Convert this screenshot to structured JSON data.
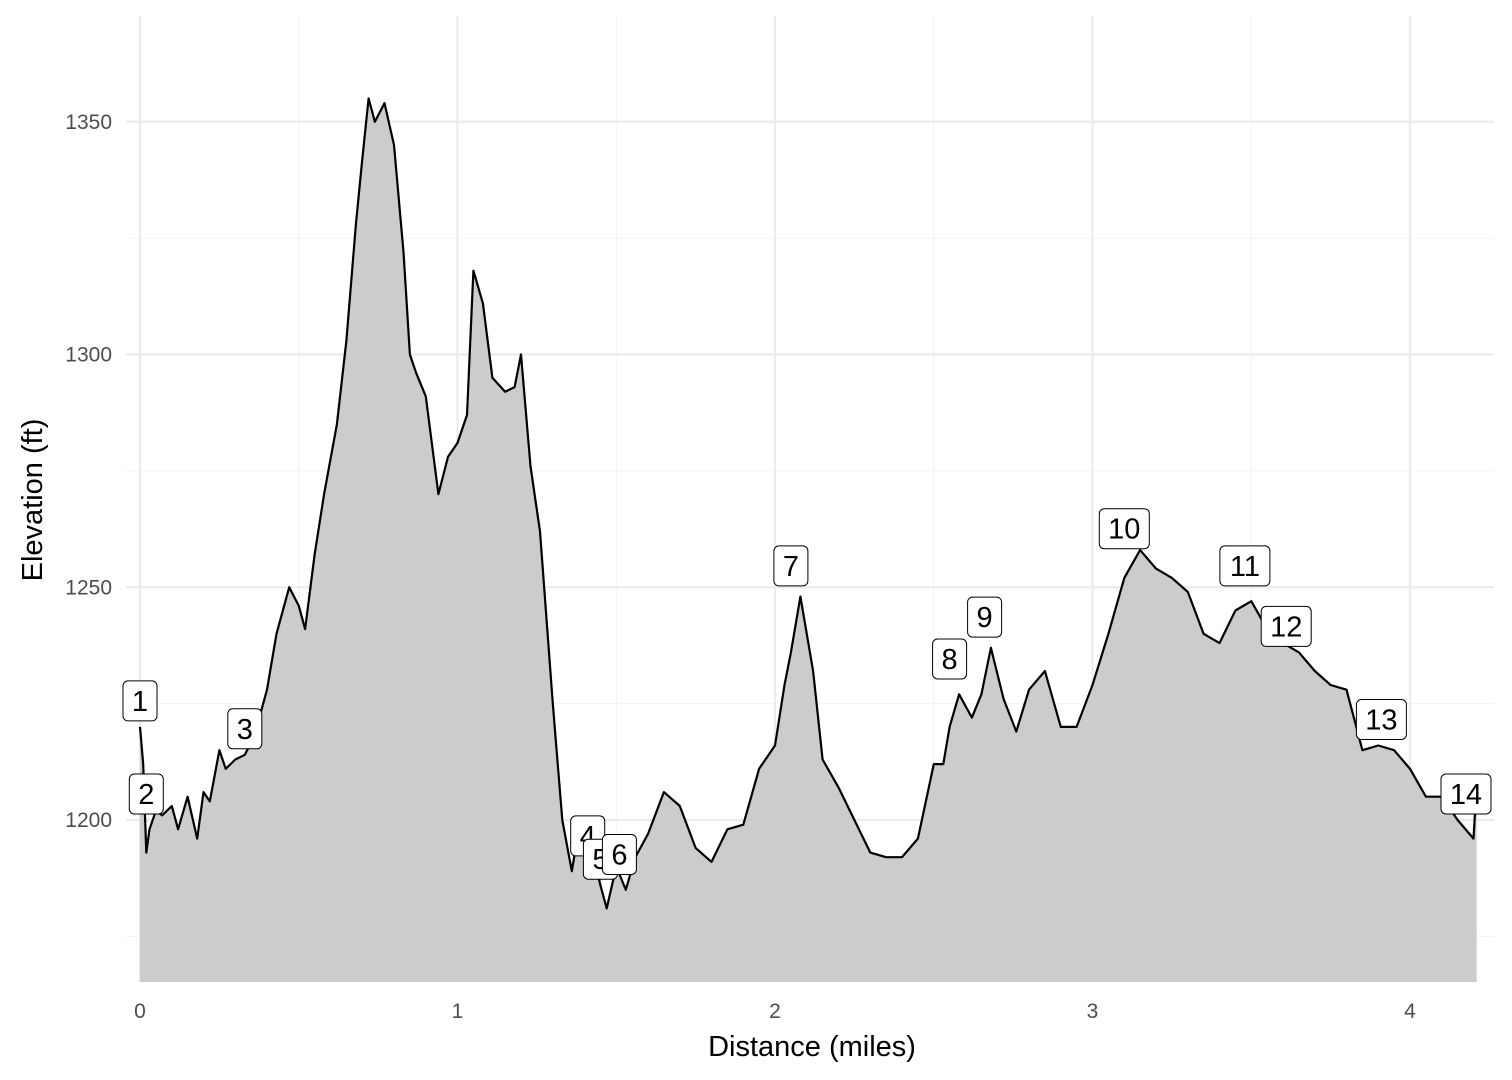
{
  "chart_data": {
    "type": "area",
    "title": "",
    "xlabel": "Distance (miles)",
    "ylabel": "Elevation (ft)",
    "xlim": [
      0,
      4.25
    ],
    "ylim": [
      1165,
      1373
    ],
    "grid": true,
    "x_ticks": [
      0,
      1,
      2,
      3,
      4
    ],
    "x_tick_labels": [
      "0",
      "1",
      "2",
      "3",
      "4"
    ],
    "y_ticks": [
      1200,
      1250,
      1300,
      1350
    ],
    "y_tick_labels": [
      "1200",
      "1250",
      "1300",
      "1350"
    ],
    "fill_color": "#cccccc",
    "line_color": "#000000",
    "profile": {
      "x": [
        0.0,
        0.01,
        0.02,
        0.03,
        0.05,
        0.07,
        0.1,
        0.12,
        0.15,
        0.18,
        0.2,
        0.22,
        0.25,
        0.27,
        0.3,
        0.33,
        0.36,
        0.4,
        0.43,
        0.47,
        0.5,
        0.52,
        0.55,
        0.58,
        0.62,
        0.65,
        0.68,
        0.7,
        0.72,
        0.74,
        0.77,
        0.8,
        0.83,
        0.85,
        0.87,
        0.9,
        0.94,
        0.97,
        1.0,
        1.03,
        1.05,
        1.08,
        1.11,
        1.15,
        1.18,
        1.2,
        1.23,
        1.26,
        1.3,
        1.33,
        1.36,
        1.38,
        1.4,
        1.43,
        1.45,
        1.47,
        1.5,
        1.53,
        1.56,
        1.6,
        1.65,
        1.7,
        1.75,
        1.8,
        1.85,
        1.9,
        1.95,
        2.0,
        2.03,
        2.05,
        2.08,
        2.12,
        2.15,
        2.2,
        2.25,
        2.3,
        2.35,
        2.4,
        2.45,
        2.5,
        2.53,
        2.55,
        2.58,
        2.62,
        2.65,
        2.68,
        2.72,
        2.76,
        2.8,
        2.85,
        2.9,
        2.95,
        3.0,
        3.05,
        3.1,
        3.15,
        3.2,
        3.25,
        3.3,
        3.35,
        3.4,
        3.45,
        3.5,
        3.55,
        3.6,
        3.65,
        3.7,
        3.75,
        3.8,
        3.85,
        3.9,
        3.95,
        4.0,
        4.05,
        4.1,
        4.15,
        4.2,
        4.21
      ],
      "y": [
        1220,
        1212,
        1193,
        1198,
        1202,
        1201,
        1203,
        1198,
        1205,
        1196,
        1206,
        1204,
        1215,
        1211,
        1213,
        1214,
        1218,
        1228,
        1240,
        1250,
        1246,
        1241,
        1257,
        1270,
        1285,
        1303,
        1328,
        1342,
        1355,
        1350,
        1354,
        1345,
        1322,
        1300,
        1296,
        1291,
        1270,
        1278,
        1281,
        1287,
        1318,
        1311,
        1295,
        1292,
        1293,
        1300,
        1276,
        1262,
        1225,
        1200,
        1189,
        1197,
        1196,
        1192,
        1186,
        1181,
        1190,
        1185,
        1192,
        1197,
        1206,
        1203,
        1194,
        1191,
        1198,
        1199,
        1211,
        1216,
        1229,
        1236,
        1248,
        1232,
        1213,
        1207,
        1200,
        1193,
        1192,
        1192,
        1196,
        1212,
        1212,
        1220,
        1227,
        1222,
        1227,
        1237,
        1226,
        1219,
        1228,
        1232,
        1220,
        1220,
        1229,
        1240,
        1252,
        1258,
        1254,
        1252,
        1249,
        1240,
        1238,
        1245,
        1247,
        1241,
        1238,
        1236,
        1232,
        1229,
        1228,
        1215,
        1216,
        1215,
        1211,
        1205,
        1205,
        1200,
        1196,
        1208
      ]
    },
    "waypoints": [
      {
        "label": "1",
        "x": 0.0,
        "y": 1220
      },
      {
        "label": "2",
        "x": 0.02,
        "y": 1200
      },
      {
        "label": "3",
        "x": 0.33,
        "y": 1214
      },
      {
        "label": "4",
        "x": 1.41,
        "y": 1191
      },
      {
        "label": "5",
        "x": 1.45,
        "y": 1186
      },
      {
        "label": "6",
        "x": 1.51,
        "y": 1187
      },
      {
        "label": "7",
        "x": 2.05,
        "y": 1249
      },
      {
        "label": "8",
        "x": 2.55,
        "y": 1229
      },
      {
        "label": "9",
        "x": 2.66,
        "y": 1238
      },
      {
        "label": "10",
        "x": 3.1,
        "y": 1257
      },
      {
        "label": "11",
        "x": 3.48,
        "y": 1249
      },
      {
        "label": "12",
        "x": 3.61,
        "y": 1236
      },
      {
        "label": "13",
        "x": 3.91,
        "y": 1216
      },
      {
        "label": "14",
        "x": 4.18,
        "y": 1200
      }
    ]
  }
}
